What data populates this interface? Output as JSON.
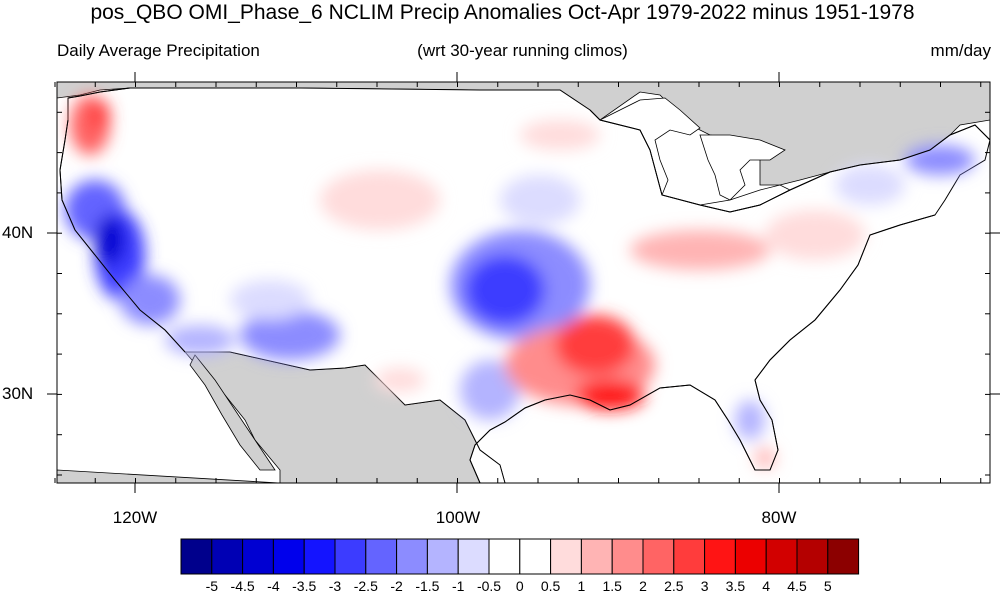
{
  "header": {
    "title": "pos_QBO OMI_Phase_6 NCLIM Precip Anomalies Oct-Apr 1979-2022 minus 1951-1978",
    "left_subtitle": "Daily Average Precipitation",
    "center_subtitle": "(wrt 30-year running climos)",
    "right_subtitle": "mm/day"
  },
  "map": {
    "lat_labels": [
      "40N",
      "30N"
    ],
    "lon_labels": [
      "120W",
      "100W",
      "80W"
    ],
    "land_color": "#ffffff",
    "masked_color": "#d0d0d0",
    "ocean_color": "#ffffff"
  },
  "colorbar": {
    "labels": [
      "-5",
      "-4.5",
      "-4",
      "-3.5",
      "-3",
      "-2.5",
      "-2",
      "-1.5",
      "-1",
      "-0.5",
      "0",
      "0.5",
      "1",
      "1.5",
      "2",
      "2.5",
      "3",
      "3.5",
      "4",
      "4.5",
      "5"
    ],
    "colors": [
      "#00008c",
      "#0000b4",
      "#0000d2",
      "#0000ec",
      "#1414ff",
      "#3c3cff",
      "#6464ff",
      "#8c8cff",
      "#b4b4ff",
      "#dcdcff",
      "#ffffff",
      "#ffffff",
      "#ffdcdc",
      "#ffb4b4",
      "#ff8c8c",
      "#ff6464",
      "#ff3c3c",
      "#ff1414",
      "#ec0000",
      "#d20000",
      "#b40000",
      "#8c0000"
    ]
  }
}
